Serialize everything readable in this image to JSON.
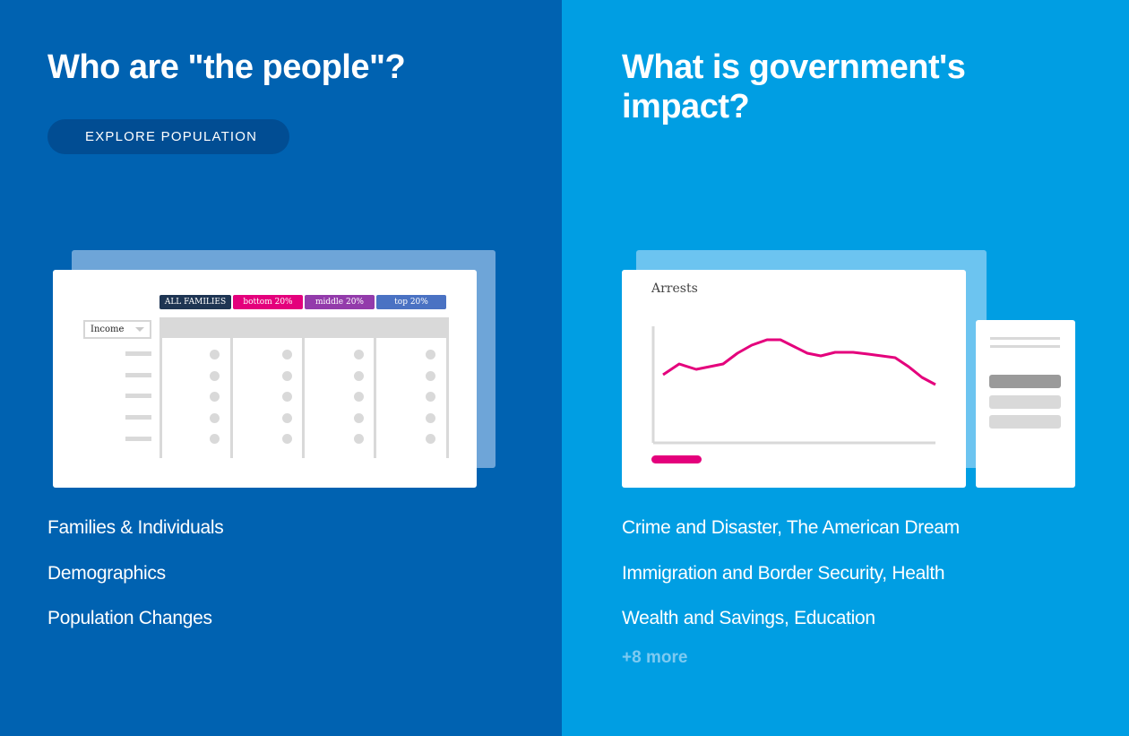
{
  "left": {
    "heading": "Who are \"the people\"?",
    "button_label": "EXPLORE POPULATION",
    "illustration": {
      "tags": [
        "ALL FAMILIES",
        "bottom 20%",
        "middle 20%",
        "top 20%"
      ],
      "tag_colors": [
        "#1e3553",
        "#e4007c",
        "#933bab",
        "#4a72c3"
      ],
      "select_value": "Income"
    },
    "links": [
      "Families & Individuals",
      "Demographics",
      "Population Changes"
    ]
  },
  "right": {
    "heading": "What is government's impact?",
    "illustration": {
      "chart_title": "Arrests",
      "line_color": "#e4007c"
    },
    "links": [
      "Crime and Disaster, The American Dream",
      "Immigration and Border Security, Health",
      "Wealth and Savings, Education"
    ],
    "more_label": "+8 more"
  },
  "colors": {
    "left_bg": "#0062b1",
    "right_bg": "#009ee3",
    "button_bg": "#014d93"
  }
}
